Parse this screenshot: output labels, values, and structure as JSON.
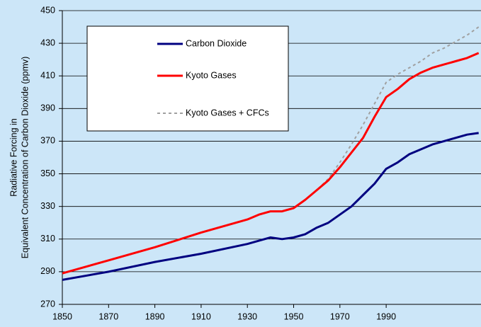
{
  "chart_data": {
    "type": "line",
    "ylabel": [
      "Radiative Forcing in",
      "Equivalent Concentration of Carbon Dioxide (ppmv)"
    ],
    "x": [
      1850,
      1870,
      1890,
      1910,
      1930,
      1935,
      1940,
      1945,
      1950,
      1955,
      1960,
      1965,
      1970,
      1975,
      1980,
      1985,
      1990,
      1995,
      2000,
      2005,
      2010,
      2015,
      2020,
      2025,
      2030
    ],
    "series": [
      {
        "name": "Carbon Dioxide",
        "color": "#000080",
        "dash": false,
        "values": [
          285,
          290,
          296,
          301,
          307,
          309,
          311,
          310,
          311,
          313,
          317,
          320,
          325,
          330,
          337,
          344,
          353,
          357,
          362,
          365,
          368,
          370,
          372,
          374,
          375
        ]
      },
      {
        "name": "Kyoto Gases",
        "color": "#ff0000",
        "dash": false,
        "values": [
          289,
          297,
          305,
          314,
          322,
          325,
          327,
          327,
          329,
          334,
          340,
          346,
          354,
          363,
          372,
          385,
          397,
          402,
          408,
          412,
          415,
          417,
          419,
          421,
          424
        ]
      },
      {
        "name": "Kyoto Gases + CFCs",
        "color": "#a0a0a0",
        "dash": true,
        "values": [
          289,
          297,
          305,
          314,
          322,
          325,
          327,
          327,
          329,
          334,
          340,
          347,
          357,
          368,
          380,
          393,
          406,
          411,
          415,
          419,
          424,
          427,
          431,
          435,
          440
        ]
      }
    ],
    "xlim": [
      1850,
      2031
    ],
    "xticks": [
      1850,
      1870,
      1890,
      1910,
      1930,
      1950,
      1970,
      1990
    ],
    "ylim": [
      270,
      450
    ],
    "yticks": [
      270,
      290,
      310,
      330,
      350,
      370,
      390,
      410,
      430,
      450
    ],
    "grid": true
  }
}
